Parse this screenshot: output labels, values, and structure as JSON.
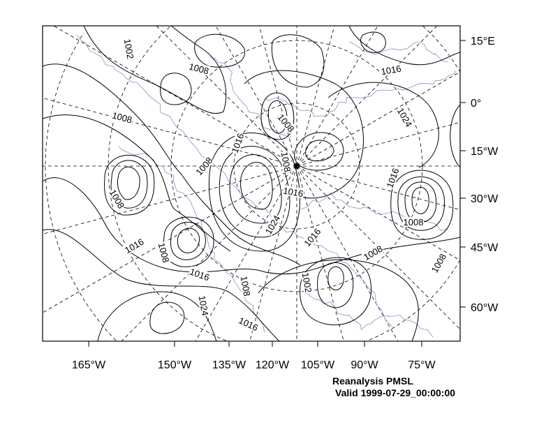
{
  "plot": {
    "title": "Reanalysis PMSL",
    "valid": "Valid 1999-07-29_00:00:00",
    "colors": {
      "contour": "#000000",
      "coastline": "#9b86c9",
      "grid": "#000000",
      "frame": "#000000"
    }
  },
  "axes": {
    "right_labels": [
      "15°E",
      "0°",
      "15°W",
      "30°W",
      "45°W",
      "60°W"
    ],
    "bottom_labels": [
      "165°W",
      "150°W",
      "135°W",
      "120°W",
      "105°W",
      "90°W",
      "75°W"
    ]
  },
  "contour_labels": [
    "1002",
    "1008",
    "1008",
    "1016",
    "1024",
    "1016",
    "1008",
    "1008",
    "1008",
    "1016",
    "1008",
    "1016",
    "1008",
    "1024",
    "1016",
    "1008",
    "1008",
    "1016",
    "1008",
    "1016",
    "1002",
    "1008",
    "1024",
    "1016"
  ]
}
